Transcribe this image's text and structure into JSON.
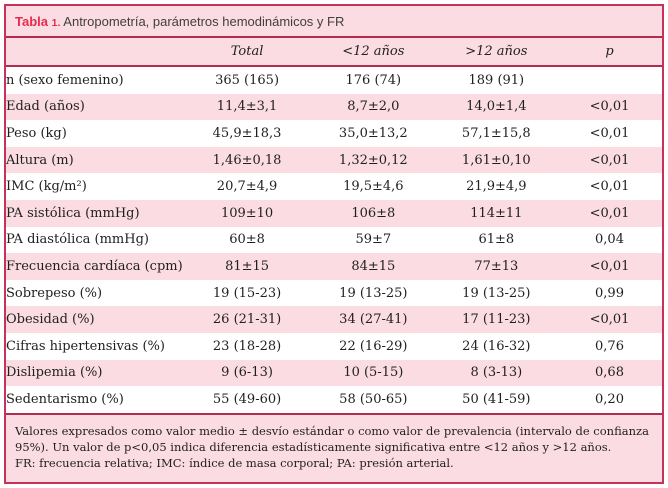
{
  "colors": {
    "border_red": "#c73358",
    "rule_red": "#b52b4e",
    "title_red": "#e62b4f",
    "pink_background": "#fbdce2",
    "row_white": "#ffffff",
    "text_dark": "#1f1f1f"
  },
  "header": {
    "label_word": "Tabla",
    "label_number": "1.",
    "title": "Antropometría, parámetros hemodinámicos y FR"
  },
  "table": {
    "columns": [
      "",
      "Total",
      "<12 años",
      ">12 años",
      "p"
    ],
    "rows": [
      {
        "label": "n (sexo femenino)",
        "total": "365 (165)",
        "under12": "176 (74)",
        "over12": "189 (91)",
        "p": ""
      },
      {
        "label": "Edad (años)",
        "total": "11,4±3,1",
        "under12": "8,7±2,0",
        "over12": "14,0±1,4",
        "p": "<0,01"
      },
      {
        "label": "Peso (kg)",
        "total": "45,9±18,3",
        "under12": "35,0±13,2",
        "over12": "57,1±15,8",
        "p": "<0,01"
      },
      {
        "label": "Altura (m)",
        "total": "1,46±0,18",
        "under12": "1,32±0,12",
        "over12": "1,61±0,10",
        "p": "<0,01"
      },
      {
        "label": "IMC (kg/m²)",
        "total": "20,7±4,9",
        "under12": "19,5±4,6",
        "over12": "21,9±4,9",
        "p": "<0,01"
      },
      {
        "label": "PA sistólica (mmHg)",
        "total": "109±10",
        "under12": "106±8",
        "over12": "114±11",
        "p": "<0,01"
      },
      {
        "label": "PA diastólica (mmHg)",
        "total": "60±8",
        "under12": "59±7",
        "over12": "61±8",
        "p": "0,04"
      },
      {
        "label": "Frecuencia cardíaca (cpm)",
        "total": "81±15",
        "under12": "84±15",
        "over12": "77±13",
        "p": "<0,01"
      },
      {
        "label": "Sobrepeso (%)",
        "total": "19 (15-23)",
        "under12": "19 (13-25)",
        "over12": "19 (13-25)",
        "p": "0,99"
      },
      {
        "label": "Obesidad (%)",
        "total": "26 (21-31)",
        "under12": "34 (27-41)",
        "over12": "17 (11-23)",
        "p": "<0,01"
      },
      {
        "label": "Cifras hipertensivas (%)",
        "total": "23 (18-28)",
        "under12": "22 (16-29)",
        "over12": "24 (16-32)",
        "p": "0,76"
      },
      {
        "label": "Dislipemia (%)",
        "total": "9 (6-13)",
        "under12": "10 (5-15)",
        "over12": "8 (3-13)",
        "p": "0,68"
      },
      {
        "label": "Sedentarismo (%)",
        "total": "55 (49-60)",
        "under12": "58 (50-65)",
        "over12": "50 (41-59)",
        "p": "0,20"
      }
    ]
  },
  "footnotes": {
    "note_values": "Valores expresados como valor medio ± desvío estándar o como valor de prevalencia (intervalo de confianza 95%). Un valor de p<0,05 indica diferencia estadísticamente significativa entre <12 años y >12 años.",
    "note_abbreviations": "FR: frecuencia relativa; IMC: índice de masa corporal; PA: presión arterial."
  }
}
